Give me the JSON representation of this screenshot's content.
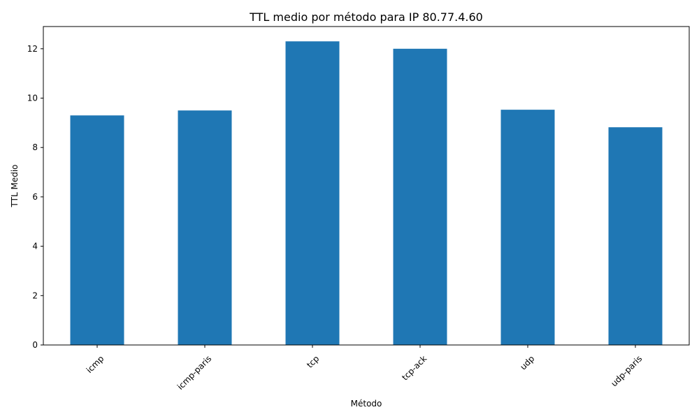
{
  "chart_data": {
    "type": "bar",
    "title": "TTL medio por método para IP 80.77.4.60",
    "xlabel": "Método",
    "ylabel": "TTL Medio",
    "categories": [
      "icmp",
      "icmp-paris",
      "tcp",
      "tcp-ack",
      "udp",
      "udp-paris"
    ],
    "values": [
      9.3,
      9.5,
      12.3,
      12.0,
      9.53,
      8.82
    ],
    "ylim": [
      0,
      12.9
    ],
    "yticks": [
      0,
      2,
      4,
      6,
      8,
      10,
      12
    ],
    "ytick_labels": [
      "0",
      "2",
      "4",
      "6",
      "8",
      "10",
      "12"
    ],
    "xtick_rotation_deg": 45,
    "grid": false,
    "bar_color": "#1f77b4"
  }
}
